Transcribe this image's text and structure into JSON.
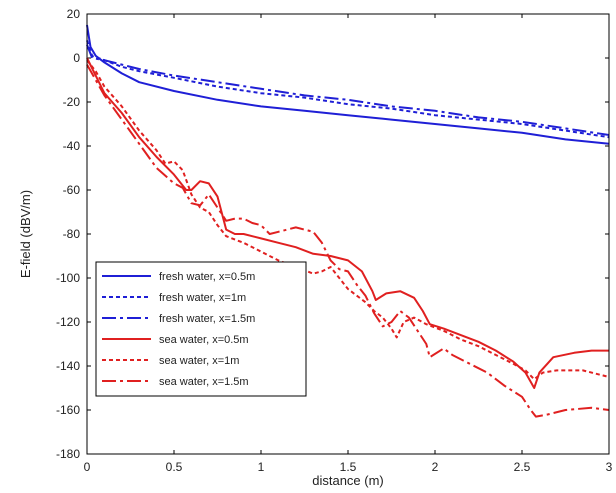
{
  "chart_data": {
    "type": "line",
    "title": "",
    "xlabel": "distance (m)",
    "ylabel": "E-field (dBV/m)",
    "xlim": [
      0,
      3
    ],
    "ylim": [
      -180,
      20
    ],
    "x_ticks": [
      0,
      0.5,
      1,
      1.5,
      2,
      2.5,
      3
    ],
    "x_tick_labels": [
      "0",
      "0.5",
      "1",
      "1.5",
      "2",
      "2.5",
      "3"
    ],
    "y_ticks": [
      20,
      0,
      -20,
      -40,
      -60,
      -80,
      -100,
      -120,
      -140,
      -160,
      -180
    ],
    "y_tick_labels": [
      "20",
      "0",
      "-20",
      "-40",
      "-60",
      "-80",
      "-100",
      "-120",
      "-140",
      "-160",
      "-180"
    ],
    "grid": false,
    "legend_position": "bottom-left",
    "series": [
      {
        "name": "fresh water, x=0.5m",
        "color": "#1f1fd6",
        "dash": "solid",
        "points": [
          [
            0,
            15
          ],
          [
            0.02,
            5
          ],
          [
            0.05,
            1
          ],
          [
            0.1,
            -2
          ],
          [
            0.2,
            -7
          ],
          [
            0.3,
            -11
          ],
          [
            0.5,
            -15
          ],
          [
            0.75,
            -19
          ],
          [
            1.0,
            -22
          ],
          [
            1.25,
            -24
          ],
          [
            1.5,
            -26
          ],
          [
            1.75,
            -28
          ],
          [
            2.0,
            -30
          ],
          [
            2.25,
            -32
          ],
          [
            2.5,
            -34
          ],
          [
            2.75,
            -37
          ],
          [
            3.0,
            -39
          ]
        ]
      },
      {
        "name": "fresh water, x=1m",
        "color": "#1f1fd6",
        "dash": "dotted",
        "points": [
          [
            0,
            8
          ],
          [
            0.03,
            1
          ],
          [
            0.1,
            -1
          ],
          [
            0.2,
            -4
          ],
          [
            0.3,
            -6
          ],
          [
            0.5,
            -9
          ],
          [
            0.75,
            -13
          ],
          [
            1.0,
            -16
          ],
          [
            1.25,
            -18
          ],
          [
            1.5,
            -21
          ],
          [
            1.75,
            -23
          ],
          [
            2.0,
            -26
          ],
          [
            2.25,
            -28
          ],
          [
            2.5,
            -30
          ],
          [
            2.75,
            -33
          ],
          [
            3.0,
            -36
          ]
        ]
      },
      {
        "name": "fresh water, x=1.5m",
        "color": "#1f1fd6",
        "dash": "dashdot",
        "points": [
          [
            0,
            6
          ],
          [
            0.03,
            0
          ],
          [
            0.1,
            -1
          ],
          [
            0.2,
            -3
          ],
          [
            0.3,
            -5
          ],
          [
            0.5,
            -8
          ],
          [
            0.75,
            -11
          ],
          [
            1.0,
            -14
          ],
          [
            1.25,
            -17
          ],
          [
            1.5,
            -19
          ],
          [
            1.75,
            -22
          ],
          [
            2.0,
            -24
          ],
          [
            2.25,
            -27
          ],
          [
            2.5,
            -29
          ],
          [
            2.75,
            -32
          ],
          [
            3.0,
            -35
          ]
        ]
      },
      {
        "name": "sea water, x=0.5m",
        "color": "#e02020",
        "dash": "solid",
        "points": [
          [
            0,
            0
          ],
          [
            0.05,
            -8
          ],
          [
            0.1,
            -16
          ],
          [
            0.2,
            -25
          ],
          [
            0.3,
            -36
          ],
          [
            0.4,
            -45
          ],
          [
            0.5,
            -53
          ],
          [
            0.57,
            -60
          ],
          [
            0.6,
            -60
          ],
          [
            0.65,
            -56
          ],
          [
            0.7,
            -57
          ],
          [
            0.75,
            -63
          ],
          [
            0.8,
            -78
          ],
          [
            0.85,
            -80
          ],
          [
            0.9,
            -80
          ],
          [
            1.0,
            -82
          ],
          [
            1.1,
            -84
          ],
          [
            1.2,
            -86
          ],
          [
            1.3,
            -89
          ],
          [
            1.4,
            -90
          ],
          [
            1.5,
            -92
          ],
          [
            1.58,
            -97
          ],
          [
            1.64,
            -106
          ],
          [
            1.66,
            -110
          ],
          [
            1.72,
            -107
          ],
          [
            1.8,
            -106
          ],
          [
            1.88,
            -109
          ],
          [
            1.93,
            -115
          ],
          [
            1.97,
            -121
          ],
          [
            2.05,
            -123
          ],
          [
            2.15,
            -126
          ],
          [
            2.25,
            -129
          ],
          [
            2.35,
            -133
          ],
          [
            2.45,
            -138
          ],
          [
            2.52,
            -143
          ],
          [
            2.57,
            -150
          ],
          [
            2.6,
            -143
          ],
          [
            2.68,
            -136
          ],
          [
            2.8,
            -134
          ],
          [
            2.9,
            -133
          ],
          [
            3.0,
            -133
          ]
        ]
      },
      {
        "name": "sea water, x=1m",
        "color": "#e02020",
        "dash": "dotted",
        "points": [
          [
            0,
            -1
          ],
          [
            0.05,
            -6
          ],
          [
            0.1,
            -13
          ],
          [
            0.2,
            -22
          ],
          [
            0.3,
            -33
          ],
          [
            0.4,
            -42
          ],
          [
            0.45,
            -48
          ],
          [
            0.5,
            -47
          ],
          [
            0.55,
            -51
          ],
          [
            0.6,
            -62
          ],
          [
            0.65,
            -68
          ],
          [
            0.7,
            -70
          ],
          [
            0.75,
            -76
          ],
          [
            0.8,
            -81
          ],
          [
            0.9,
            -84
          ],
          [
            1.0,
            -88
          ],
          [
            1.1,
            -92
          ],
          [
            1.2,
            -95
          ],
          [
            1.3,
            -98
          ],
          [
            1.35,
            -97
          ],
          [
            1.4,
            -95
          ],
          [
            1.45,
            -100
          ],
          [
            1.5,
            -105
          ],
          [
            1.6,
            -111
          ],
          [
            1.65,
            -115
          ],
          [
            1.7,
            -118
          ],
          [
            1.75,
            -123
          ],
          [
            1.78,
            -127
          ],
          [
            1.82,
            -120
          ],
          [
            1.88,
            -118
          ],
          [
            1.95,
            -121
          ],
          [
            2.05,
            -124
          ],
          [
            2.15,
            -128
          ],
          [
            2.25,
            -131
          ],
          [
            2.35,
            -135
          ],
          [
            2.45,
            -139
          ],
          [
            2.52,
            -142
          ],
          [
            2.57,
            -146
          ],
          [
            2.62,
            -143
          ],
          [
            2.7,
            -142
          ],
          [
            2.85,
            -142
          ],
          [
            3.0,
            -145
          ]
        ]
      },
      {
        "name": "sea water, x=1.5m",
        "color": "#e02020",
        "dash": "dashdot",
        "points": [
          [
            0,
            -3
          ],
          [
            0.05,
            -10
          ],
          [
            0.1,
            -17
          ],
          [
            0.2,
            -28
          ],
          [
            0.3,
            -39
          ],
          [
            0.4,
            -50
          ],
          [
            0.5,
            -57
          ],
          [
            0.55,
            -59
          ],
          [
            0.6,
            -66
          ],
          [
            0.65,
            -67
          ],
          [
            0.7,
            -62
          ],
          [
            0.75,
            -68
          ],
          [
            0.8,
            -74
          ],
          [
            0.85,
            -73
          ],
          [
            0.9,
            -73
          ],
          [
            0.95,
            -75
          ],
          [
            1.0,
            -76
          ],
          [
            1.05,
            -80
          ],
          [
            1.1,
            -79
          ],
          [
            1.2,
            -77
          ],
          [
            1.3,
            -79
          ],
          [
            1.35,
            -84
          ],
          [
            1.4,
            -92
          ],
          [
            1.45,
            -96
          ],
          [
            1.5,
            -97
          ],
          [
            1.55,
            -103
          ],
          [
            1.6,
            -108
          ],
          [
            1.65,
            -116
          ],
          [
            1.7,
            -122
          ],
          [
            1.75,
            -120
          ],
          [
            1.8,
            -115
          ],
          [
            1.85,
            -118
          ],
          [
            1.9,
            -124
          ],
          [
            1.95,
            -130
          ],
          [
            1.97,
            -136
          ],
          [
            2.05,
            -132
          ],
          [
            2.1,
            -135
          ],
          [
            2.2,
            -139
          ],
          [
            2.3,
            -143
          ],
          [
            2.4,
            -149
          ],
          [
            2.5,
            -154
          ],
          [
            2.55,
            -160
          ],
          [
            2.58,
            -163
          ],
          [
            2.65,
            -162
          ],
          [
            2.75,
            -160
          ],
          [
            2.9,
            -159
          ],
          [
            3.0,
            -160
          ]
        ]
      }
    ]
  }
}
